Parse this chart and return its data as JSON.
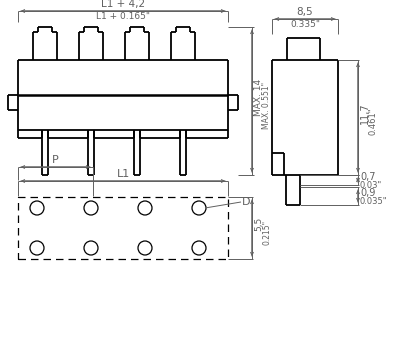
{
  "bg_color": "#ffffff",
  "line_color": "#000000",
  "dim_color": "#606060",
  "annotations": {
    "L1_plus_42": "L1 + 4,2",
    "L1_plus_0165": "L1 + 0.165\"",
    "MAX14": "MAX. 14",
    "MAX0551": "MAX. 0.551\"",
    "L1": "L1",
    "P": "P",
    "D": "D",
    "dim_55": "5,5",
    "dim_0215": "0.215\"",
    "dim_85": "8,5",
    "dim_0335": "0.335\"",
    "dim_117": "11,7",
    "dim_0461": "0.461\"",
    "dim_07": "0,7",
    "dim_003": "0.03\"",
    "dim_09": "0,9",
    "dim_0035": "0.035\""
  }
}
